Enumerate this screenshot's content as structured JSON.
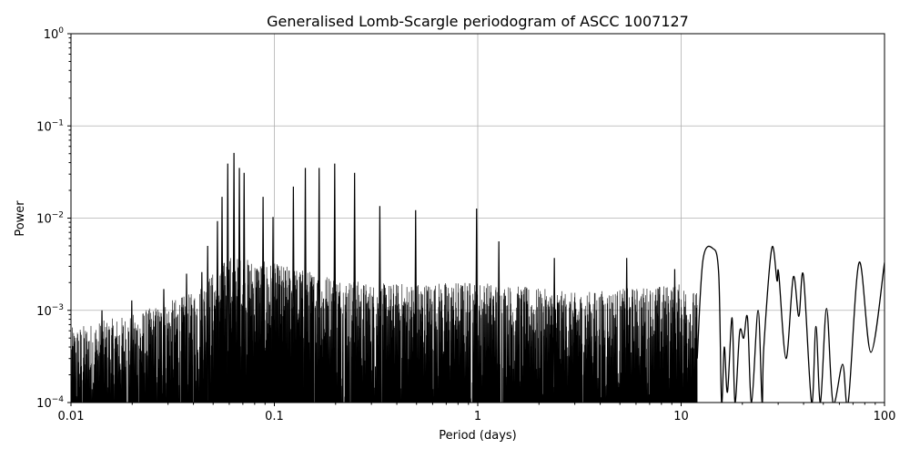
{
  "chart_data": {
    "type": "line",
    "title": "Generalised Lomb-Scargle periodogram of ASCC 1007127",
    "xlabel": "Period (days)",
    "ylabel": "Power",
    "xscale": "log",
    "yscale": "log",
    "xlim": [
      0.01,
      100
    ],
    "ylim": [
      0.0001,
      1
    ],
    "grid": true,
    "x_ticks": [
      {
        "v": 0.01,
        "label": "0.01"
      },
      {
        "v": 0.1,
        "label": "0.1"
      },
      {
        "v": 1,
        "label": "1"
      },
      {
        "v": 10,
        "label": "10"
      },
      {
        "v": 100,
        "label": "100"
      }
    ],
    "y_ticks": [
      {
        "v": 0.0001,
        "base": "10",
        "exp": "−4"
      },
      {
        "v": 0.001,
        "base": "10",
        "exp": "−3"
      },
      {
        "v": 0.01,
        "base": "10",
        "exp": "−2"
      },
      {
        "v": 0.1,
        "base": "10",
        "exp": "−1"
      },
      {
        "v": 1,
        "base": "10",
        "exp": "0"
      }
    ],
    "line_color": "#000000",
    "grid_color": "#b0b0b0",
    "noise_envelope": [
      [
        0.01,
        0.0005
      ],
      [
        0.02,
        0.0007
      ],
      [
        0.04,
        0.0012
      ],
      [
        0.06,
        0.003
      ],
      [
        0.1,
        0.0025
      ],
      [
        0.3,
        0.0015
      ],
      [
        1,
        0.0016
      ],
      [
        3,
        0.0012
      ],
      [
        10,
        0.0015
      ],
      [
        12,
        0.0012
      ]
    ],
    "peaks": [
      [
        0.0142,
        0.001
      ],
      [
        0.0199,
        0.00128
      ],
      [
        0.0286,
        0.0017
      ],
      [
        0.037,
        0.0025
      ],
      [
        0.044,
        0.0026
      ],
      [
        0.047,
        0.005
      ],
      [
        0.0525,
        0.0093
      ],
      [
        0.0553,
        0.017
      ],
      [
        0.059,
        0.039
      ],
      [
        0.0633,
        0.051
      ],
      [
        0.0673,
        0.035
      ],
      [
        0.071,
        0.031
      ],
      [
        0.088,
        0.017
      ],
      [
        0.0985,
        0.0103
      ],
      [
        0.124,
        0.022
      ],
      [
        0.142,
        0.035
      ],
      [
        0.166,
        0.035
      ],
      [
        0.198,
        0.039
      ],
      [
        0.248,
        0.031
      ],
      [
        0.33,
        0.0135
      ],
      [
        0.495,
        0.0122
      ],
      [
        0.987,
        0.0127
      ],
      [
        1.27,
        0.0056
      ],
      [
        2.38,
        0.0037
      ],
      [
        5.4,
        0.0037
      ],
      [
        9.3,
        0.0028
      ]
    ],
    "smooth_series": [
      [
        12.0,
        0.0003
      ],
      [
        12.8,
        0.0035
      ],
      [
        14.3,
        0.0047
      ],
      [
        15.3,
        0.0025
      ],
      [
        15.8,
        0.0001
      ],
      [
        16.3,
        0.0004
      ],
      [
        16.9,
        0.00013
      ],
      [
        17.8,
        0.00083
      ],
      [
        18.4,
        0.0001
      ],
      [
        19.4,
        0.00058
      ],
      [
        20.3,
        0.0005
      ],
      [
        21.2,
        0.00083
      ],
      [
        22.2,
        0.0001
      ],
      [
        23.9,
        0.001
      ],
      [
        25.0,
        0.0001
      ],
      [
        25.5,
        0.0004
      ],
      [
        27.9,
        0.0047
      ],
      [
        29.6,
        0.0021
      ],
      [
        30.2,
        0.0025
      ],
      [
        32.8,
        0.0003
      ],
      [
        35.6,
        0.0023
      ],
      [
        37.9,
        0.00086
      ],
      [
        39.9,
        0.0024
      ],
      [
        43.8,
        0.0001
      ],
      [
        46.0,
        0.00067
      ],
      [
        48.4,
        0.0001
      ],
      [
        51.9,
        0.00105
      ],
      [
        55.8,
        0.0001
      ],
      [
        62.2,
        0.00026
      ],
      [
        66.3,
        0.0001
      ],
      [
        75.0,
        0.0033
      ],
      [
        85.7,
        0.00035
      ],
      [
        100,
        0.0033
      ]
    ]
  }
}
